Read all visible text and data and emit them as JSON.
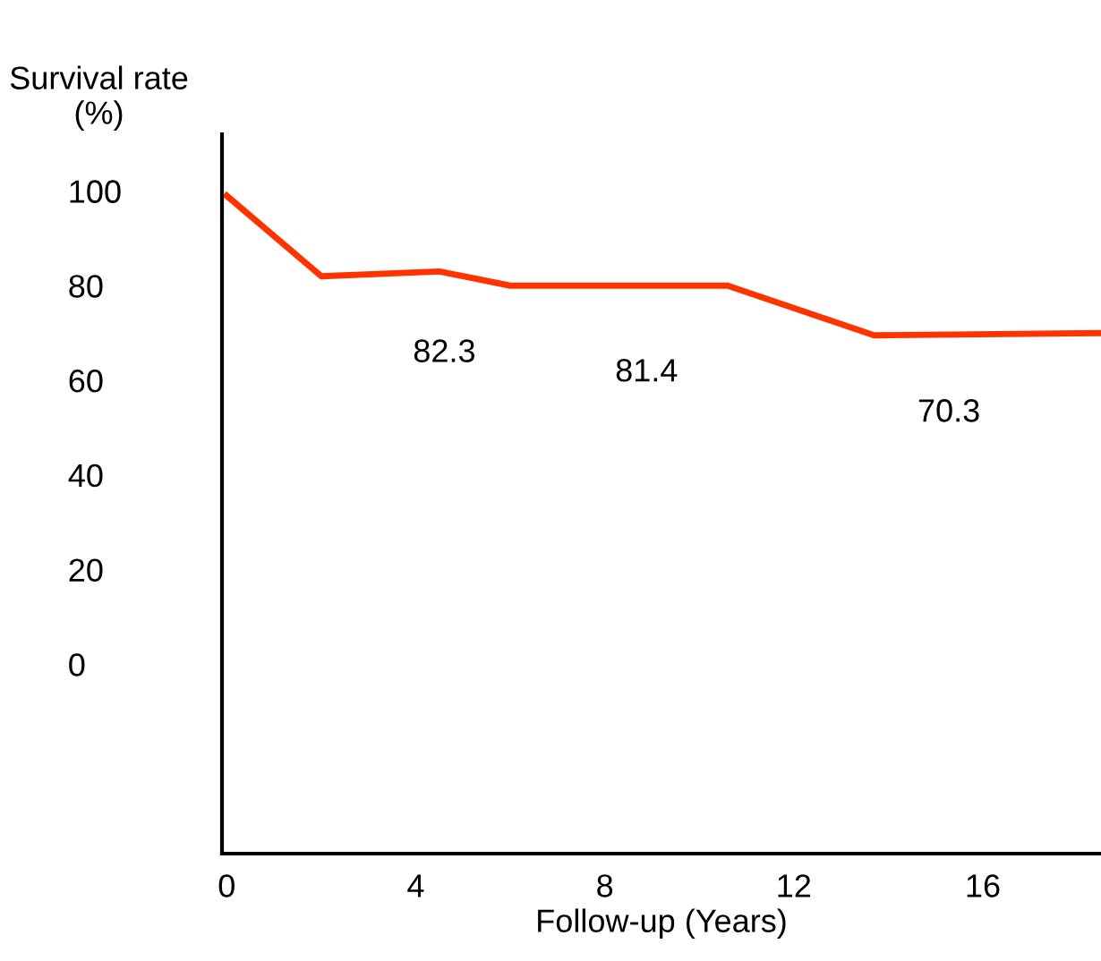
{
  "chart_data": {
    "type": "line",
    "xlabel": "Follow-up (Years)",
    "ylabel": "Survival rate\n(%)",
    "x": [
      0,
      2,
      4.5,
      6,
      10.6,
      13.7,
      18.5
    ],
    "series": [
      {
        "color": "#ff3300",
        "values": [
          99,
          82,
          83,
          80,
          80,
          69.5,
          70
        ]
      }
    ],
    "xlim": [
      -0.1,
      18.5
    ],
    "ylim": [
      -40,
      112
    ],
    "xticks": [
      0,
      4,
      8,
      12,
      16
    ],
    "yticks": [
      0,
      20,
      40,
      60,
      80,
      100
    ],
    "grid": false,
    "legend": false,
    "marker": "none",
    "line_style": "solid",
    "annotations": [
      "82.3",
      "81.4",
      "70.3"
    ]
  }
}
